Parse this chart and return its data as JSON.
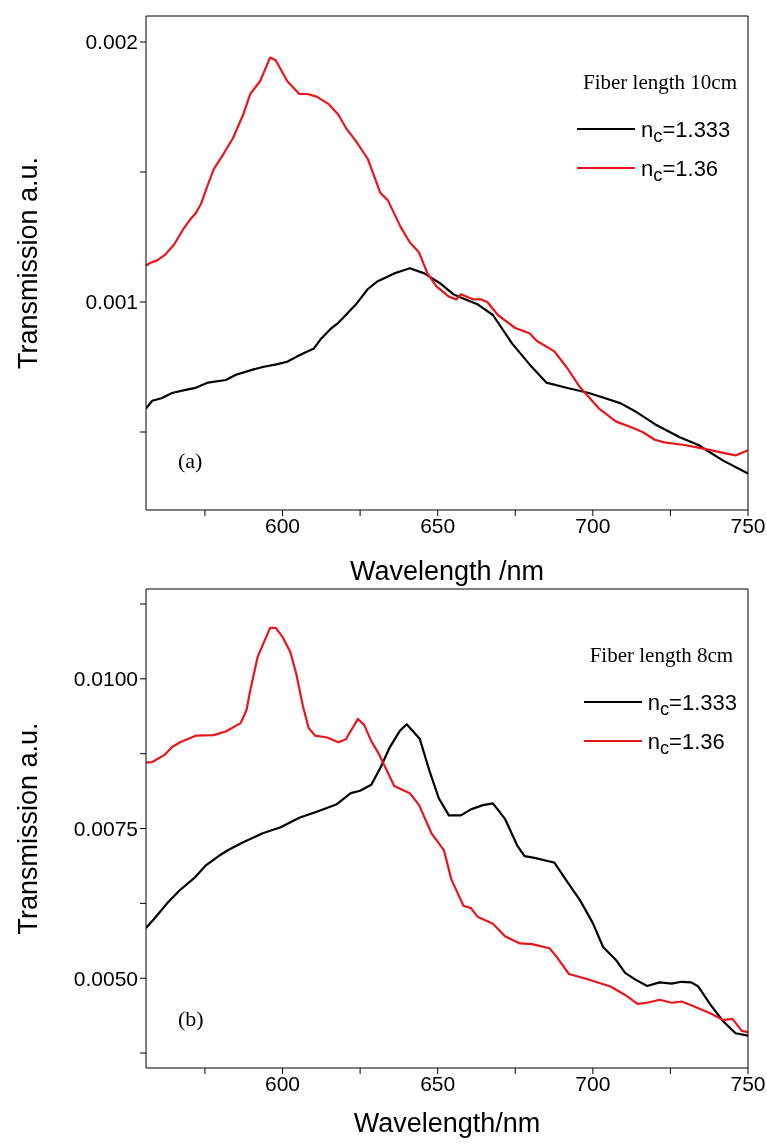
{
  "chart_data": [
    {
      "type": "line",
      "legend_title": "Fiber length 10cm",
      "xlabel": "Wavelength /nm",
      "ylabel": "Transmission a.u.",
      "annotations": [
        "(a)"
      ],
      "legend": "top right",
      "xlim": [
        556,
        750
      ],
      "xticks": [
        {
          "value": 575,
          "label": null
        },
        600,
        {
          "value": 625,
          "label": null
        },
        650,
        {
          "value": 675,
          "label": null
        },
        700,
        {
          "value": 725,
          "label": null
        },
        750
      ],
      "ylim": [
        0.0002,
        0.0021
      ],
      "yticks": [
        {
          "value": 0.0005,
          "label": null
        },
        0.001,
        {
          "value": 0.0015,
          "label": null
        },
        0.002
      ],
      "series": [
        {
          "name": "n$_{c}$=1.333",
          "color": "#000000",
          "x": [
            556,
            558,
            561,
            564.4,
            568,
            572,
            576,
            581.7,
            585,
            590.4,
            593.6,
            598,
            601.5,
            604.6,
            608,
            610,
            612.5,
            615.8,
            618,
            620.4,
            623.6,
            627.5,
            630.7,
            636,
            638.6,
            641,
            645.7,
            651,
            655,
            659,
            663,
            667.8,
            674,
            679.6,
            685,
            691.5,
            698.7,
            704,
            709,
            713.6,
            720,
            728,
            734,
            742,
            750
          ],
          "values": [
            0.00059,
            0.00062,
            0.00063,
            0.00065,
            0.00066,
            0.00067,
            0.00069,
            0.0007,
            0.00072,
            0.00074,
            0.00075,
            0.00076,
            0.00077,
            0.00079,
            0.00081,
            0.00082,
            0.00086,
            0.0009,
            0.00092,
            0.00095,
            0.00099,
            0.00105,
            0.00108,
            0.00111,
            0.00112,
            0.00113,
            0.00111,
            0.00107,
            0.00103,
            0.00101,
            0.00099,
            0.00095,
            0.00084,
            0.00076,
            0.00069,
            0.00067,
            0.00065,
            0.00063,
            0.00061,
            0.00058,
            0.00053,
            0.00048,
            0.00045,
            0.00039,
            0.00034
          ]
        },
        {
          "name": "n$_{c}$=1.36",
          "color": "#e8161b",
          "x": [
            556,
            557.3,
            559.6,
            562,
            565,
            568,
            570.4,
            572,
            573.8,
            575.9,
            577.8,
            581,
            584,
            587.3,
            589.6,
            592.8,
            596,
            597.8,
            601.5,
            605.4,
            608,
            611,
            615,
            618,
            620.4,
            623.6,
            627.5,
            631.5,
            634,
            638,
            641,
            644,
            646.7,
            649.6,
            653.7,
            656,
            657.5,
            661.5,
            664,
            666,
            669.4,
            675,
            679.6,
            682,
            687.6,
            691.5,
            696,
            702,
            707.5,
            712,
            716,
            720,
            723,
            729.5,
            734,
            738,
            742,
            746,
            750
          ],
          "values": [
            0.00114,
            0.00115,
            0.00116,
            0.00118,
            0.00122,
            0.00128,
            0.00132,
            0.00134,
            0.00138,
            0.00145,
            0.00151,
            0.00157,
            0.00163,
            0.00172,
            0.0018,
            0.00185,
            0.00194,
            0.00193,
            0.00185,
            0.0018,
            0.0018,
            0.00179,
            0.00176,
            0.00172,
            0.00167,
            0.00162,
            0.00155,
            0.00142,
            0.00139,
            0.00129,
            0.00123,
            0.00119,
            0.00111,
            0.00106,
            0.00102,
            0.00101,
            0.00103,
            0.00101,
            0.00101,
            0.001,
            0.00095,
            0.0009,
            0.00088,
            0.00085,
            0.00081,
            0.00075,
            0.00067,
            0.00059,
            0.00054,
            0.00052,
            0.0005,
            0.00047,
            0.00046,
            0.00045,
            0.00044,
            0.00043,
            0.00042,
            0.00041,
            0.00043
          ]
        }
      ]
    },
    {
      "type": "line",
      "legend_title": "Fiber length 8cm",
      "xlabel": "Wavelength/nm",
      "ylabel": "Transmission a.u.",
      "annotations": [
        "(b)"
      ],
      "legend": "top right",
      "xlim": [
        556,
        750
      ],
      "xticks": [
        {
          "value": 575,
          "label": null
        },
        600,
        {
          "value": 625,
          "label": null
        },
        650,
        {
          "value": 675,
          "label": null
        },
        700,
        {
          "value": 725,
          "label": null
        },
        750
      ],
      "ylim": [
        0.0035,
        0.0115
      ],
      "yticks": [
        {
          "value": 0.00375,
          "label": null
        },
        {
          "value": 0.005,
          "label": "0.0050"
        },
        {
          "value": 0.00625,
          "label": null
        },
        {
          "value": 0.0075,
          "label": "0.0075"
        },
        {
          "value": 0.00875,
          "label": null
        },
        {
          "value": 0.01,
          "label": "0.0100"
        },
        {
          "value": 0.01125,
          "label": null
        }
      ],
      "series": [
        {
          "name": "n$_{c}$=1.333",
          "color": "#000000",
          "x": [
            556,
            558.8,
            562.8,
            566.7,
            571.5,
            575.4,
            579.4,
            582.5,
            587.3,
            593.6,
            599.4,
            605.4,
            611,
            617.3,
            622,
            625,
            628.6,
            631.5,
            634.6,
            637.8,
            640,
            644.2,
            647.3,
            650.4,
            653.6,
            657.5,
            660.7,
            664.6,
            667.8,
            671.7,
            675.6,
            678,
            681.2,
            684.4,
            687.6,
            691.5,
            696,
            700,
            703.3,
            707.5,
            710.4,
            713.6,
            717.5,
            721.5,
            725.4,
            728.6,
            731.7,
            734,
            738,
            742,
            746,
            750
          ],
          "values": [
            0.00584,
            0.006,
            0.00625,
            0.00646,
            0.00667,
            0.00689,
            0.00704,
            0.00714,
            0.00727,
            0.00742,
            0.00752,
            0.00768,
            0.00778,
            0.0079,
            0.00809,
            0.00813,
            0.00823,
            0.00851,
            0.00886,
            0.00913,
            0.00924,
            0.009,
            0.00847,
            0.008,
            0.00772,
            0.00772,
            0.00782,
            0.00789,
            0.00792,
            0.00766,
            0.00722,
            0.00704,
            0.00701,
            0.00697,
            0.00693,
            0.00663,
            0.00629,
            0.00592,
            0.00552,
            0.0053,
            0.00509,
            0.00498,
            0.00487,
            0.00493,
            0.00491,
            0.00494,
            0.00493,
            0.00486,
            0.00455,
            0.00428,
            0.00408,
            0.00404
          ]
        },
        {
          "name": "n$_{c}$=1.36",
          "color": "#e8161b",
          "x": [
            556,
            558,
            562,
            564.4,
            567,
            572,
            577.8,
            581.7,
            586.5,
            588.4,
            589.6,
            592,
            596,
            597.8,
            600,
            602.5,
            604.4,
            606.5,
            608.4,
            610.5,
            614.4,
            618,
            620.4,
            624.3,
            626.3,
            628.6,
            631,
            636,
            641,
            644,
            648,
            652,
            654.4,
            658.3,
            660.7,
            663,
            667.8,
            671.7,
            676.5,
            680.4,
            686,
            688.3,
            692.3,
            697.8,
            705.7,
            710.4,
            714.4,
            717.5,
            721.5,
            725.4,
            728.6,
            732.5,
            738,
            742,
            745,
            748,
            750
          ],
          "values": [
            0.0086,
            0.00861,
            0.00873,
            0.00886,
            0.00894,
            0.00905,
            0.00906,
            0.00912,
            0.00926,
            0.00948,
            0.00981,
            0.01037,
            0.01085,
            0.01085,
            0.0107,
            0.01045,
            0.01009,
            0.00956,
            0.00918,
            0.00905,
            0.00902,
            0.00894,
            0.00899,
            0.00933,
            0.00923,
            0.00896,
            0.00875,
            0.00821,
            0.00809,
            0.00789,
            0.00742,
            0.00714,
            0.00665,
            0.00621,
            0.00617,
            0.00602,
            0.00591,
            0.0057,
            0.00558,
            0.00557,
            0.0055,
            0.00536,
            0.00507,
            0.00499,
            0.00486,
            0.00472,
            0.00457,
            0.00459,
            0.00464,
            0.00459,
            0.00461,
            0.00453,
            0.00441,
            0.0043,
            0.00432,
            0.00412,
            0.0041
          ]
        }
      ]
    }
  ]
}
